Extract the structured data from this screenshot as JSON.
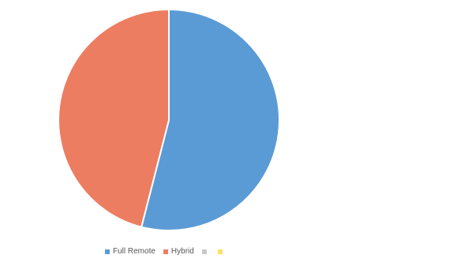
{
  "chart_data": {
    "type": "pie",
    "title": "",
    "categories": [
      "Full Remote",
      "Hybrid",
      "",
      ""
    ],
    "values": [
      54,
      46,
      0,
      0
    ],
    "colors": [
      "#5b9bd5",
      "#ed7d61",
      "#c9c9c9",
      "#ffe066"
    ],
    "start_angle_deg": 0,
    "direction": "clockwise",
    "legend_position": "bottom-left"
  }
}
